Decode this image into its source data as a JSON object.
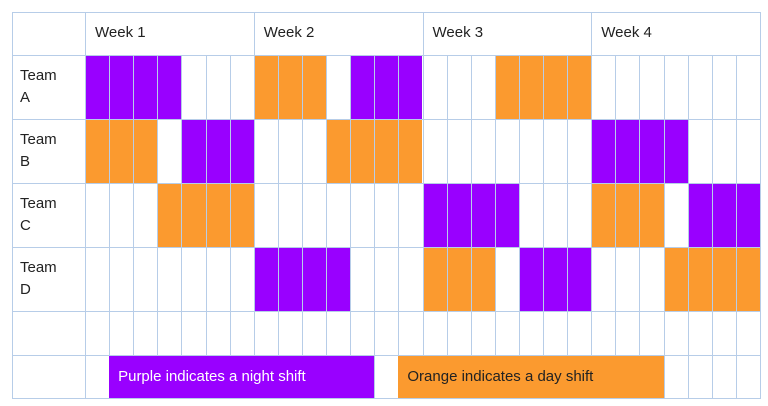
{
  "weeks": [
    "Week 1",
    "Week 2",
    "Week 3",
    "Week 4"
  ],
  "teams": [
    {
      "name": "Team A",
      "cells": [
        "#9900ff",
        "#9900ff",
        "#9900ff",
        "#9900ff",
        null,
        null,
        null,
        "#fb9a2f",
        "#fb9a2f",
        "#fb9a2f",
        null,
        "#9900ff",
        "#9900ff",
        "#9900ff",
        null,
        null,
        null,
        "#fb9a2f",
        "#fb9a2f",
        "#fb9a2f",
        "#fb9a2f",
        null,
        null,
        null,
        null,
        null,
        null,
        null
      ]
    },
    {
      "name": "Team B",
      "cells": [
        "#fb9a2f",
        "#fb9a2f",
        "#fb9a2f",
        null,
        "#9900ff",
        "#9900ff",
        "#9900ff",
        null,
        null,
        null,
        "#fb9a2f",
        "#fb9a2f",
        "#fb9a2f",
        "#fb9a2f",
        null,
        null,
        null,
        null,
        null,
        null,
        null,
        "#9900ff",
        "#9900ff",
        "#9900ff",
        "#9900ff",
        null,
        null,
        null
      ]
    },
    {
      "name": "Team C",
      "cells": [
        null,
        null,
        null,
        "#fb9a2f",
        "#fb9a2f",
        "#fb9a2f",
        "#fb9a2f",
        null,
        null,
        null,
        null,
        null,
        null,
        null,
        "#9900ff",
        "#9900ff",
        "#9900ff",
        "#9900ff",
        null,
        null,
        null,
        "#fb9a2f",
        "#fb9a2f",
        "#fb9a2f",
        null,
        "#9900ff",
        "#9900ff",
        "#9900ff"
      ]
    },
    {
      "name": "Team D",
      "cells": [
        null,
        null,
        null,
        null,
        null,
        null,
        null,
        "#9900ff",
        "#9900ff",
        "#9900ff",
        "#9900ff",
        null,
        null,
        null,
        "#fb9a2f",
        "#fb9a2f",
        "#fb9a2f",
        null,
        "#9900ff",
        "#9900ff",
        "#9900ff",
        null,
        null,
        null,
        "#fb9a2f",
        "#fb9a2f",
        "#fb9a2f",
        "#fb9a2f"
      ]
    }
  ],
  "legend": [
    {
      "text": "Purple indicates a night shift",
      "color": "#9900ff",
      "text_color": "#ffffff"
    },
    {
      "text": "Orange indicates a day shift",
      "color": "#fb9a2f",
      "text_color": "#222222"
    }
  ]
}
